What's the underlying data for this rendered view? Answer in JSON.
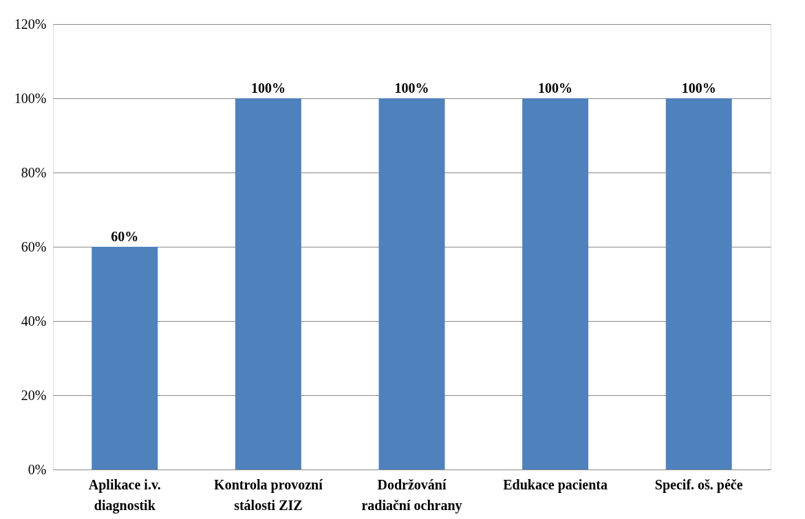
{
  "chart_data": {
    "type": "bar",
    "categories": [
      "Aplikace i.v. diagnostik",
      "Kontrola provozní stálosti ZIZ",
      "Dodržování radiační ochrany",
      "Edukace pacienta",
      "Specif. oš. péče"
    ],
    "values": [
      60,
      100,
      100,
      100,
      100
    ],
    "value_labels": [
      "60%",
      "100%",
      "100%",
      "100%",
      "100%"
    ],
    "color": "#4f81bd",
    "ylim": [
      0,
      120
    ],
    "yticks": [
      {
        "value": 0,
        "label": "0%"
      },
      {
        "value": 20,
        "label": "20%"
      },
      {
        "value": 40,
        "label": "40%"
      },
      {
        "value": 60,
        "label": "60%"
      },
      {
        "value": 80,
        "label": "80%"
      },
      {
        "value": 100,
        "label": "100%"
      },
      {
        "value": 120,
        "label": "120%"
      }
    ],
    "grid": "y"
  }
}
